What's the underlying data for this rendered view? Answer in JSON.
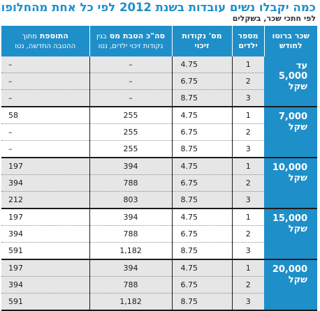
{
  "title": "כמה יקבלו נשים עובדות בשנת 2012 לפי כל אחת מהחלופות?",
  "subtitle": "לפי חתכי שכר, בשקלים",
  "headers": {
    "salary": "שכר ברוטו לחודש",
    "kids": "מספר ילדים",
    "points": "מס' נקודות זיכוי",
    "benefit_main": "סה\"כ הטבת מס",
    "benefit_inline": "בגין",
    "benefit_sub": "נקודות זיכוי ילדים, נטו",
    "addition_main": "התוספת",
    "addition_inline": "מתוך",
    "addition_sub": "ההטבה החדשה, נטו"
  },
  "groups": [
    {
      "salary": "עד 5,000 שקל",
      "rows": [
        {
          "kids": "1",
          "points": "4.75",
          "benefit": "–",
          "addition": "–"
        },
        {
          "kids": "2",
          "points": "6.75",
          "benefit": "–",
          "addition": "–"
        },
        {
          "kids": "3",
          "points": "8.75",
          "benefit": "–",
          "addition": "–"
        }
      ]
    },
    {
      "salary": "7,000 שקל",
      "rows": [
        {
          "kids": "1",
          "points": "4.75",
          "benefit": "255",
          "addition": "58"
        },
        {
          "kids": "2",
          "points": "6.75",
          "benefit": "255",
          "addition": "–"
        },
        {
          "kids": "3",
          "points": "8.75",
          "benefit": "255",
          "addition": "–"
        }
      ]
    },
    {
      "salary": "10,000 שקל",
      "rows": [
        {
          "kids": "1",
          "points": "4.75",
          "benefit": "394",
          "addition": "197"
        },
        {
          "kids": "2",
          "points": "6.75",
          "benefit": "788",
          "addition": "394"
        },
        {
          "kids": "3",
          "points": "8.75",
          "benefit": "803",
          "addition": "212"
        }
      ]
    },
    {
      "salary": "15,000 שקל",
      "rows": [
        {
          "kids": "1",
          "points": "4.75",
          "benefit": "394",
          "addition": "197"
        },
        {
          "kids": "2",
          "points": "6.75",
          "benefit": "788",
          "addition": "394"
        },
        {
          "kids": "3",
          "points": "8.75",
          "benefit": "1,182",
          "addition": "591"
        }
      ]
    },
    {
      "salary": "20,000 שקל",
      "rows": [
        {
          "kids": "1",
          "points": "4.75",
          "benefit": "394",
          "addition": "197"
        },
        {
          "kids": "2",
          "points": "6.75",
          "benefit": "788",
          "addition": "394"
        },
        {
          "kids": "3",
          "points": "8.75",
          "benefit": "1,182",
          "addition": "591"
        }
      ]
    }
  ]
}
